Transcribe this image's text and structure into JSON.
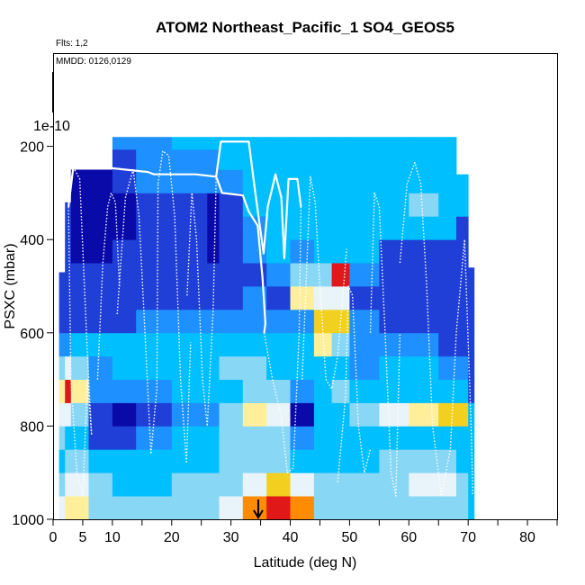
{
  "chart_data": {
    "type": "heatmap",
    "title": "ATOM2 Northeast_Pacific_1 SO4_GEOS5",
    "notes": [
      "Flts: 1,2",
      "MMDD: 0126,0129"
    ],
    "xlabel": "Latitude (deg N)",
    "ylabel": "PSXC (mbar)",
    "xlim": [
      0,
      85
    ],
    "ylim": [
      1000,
      0
    ],
    "x_ticks": [
      0,
      5,
      10,
      20,
      30,
      40,
      50,
      60,
      70,
      80
    ],
    "y_ticks": [
      200,
      400,
      600,
      800,
      1000
    ],
    "y_extra_label": "1e-10",
    "grid": false,
    "colorscale": [
      "#0a0aa8",
      "#1f3fd6",
      "#1e90ff",
      "#00bfff",
      "#87d7f5",
      "#e8f4fa",
      "#ffef9a",
      "#f2d020",
      "#ff8c00",
      "#e01818",
      "#b00000"
    ],
    "marker_latitude": 34.6,
    "pressure_levels": [
      975,
      925,
      875,
      825,
      775,
      725,
      675,
      625,
      575,
      525,
      475,
      425,
      375,
      325,
      275,
      225,
      188
    ],
    "lat_columns": [
      {
        "range": [
          1,
          2
        ],
        "top": 470,
        "levels": [
          5,
          4,
          3,
          4,
          5,
          6,
          4,
          2,
          1,
          1
        ]
      },
      {
        "range": [
          2,
          3
        ],
        "top": 320,
        "levels": [
          6,
          5,
          4,
          3,
          5,
          9,
          5,
          2,
          1,
          1,
          1,
          1,
          1
        ]
      },
      {
        "range": [
          3,
          6
        ],
        "top": 250,
        "levels": [
          6,
          5,
          4,
          3,
          4,
          6,
          4,
          3,
          1,
          1,
          1,
          0,
          0,
          0,
          0
        ]
      },
      {
        "range": [
          6,
          10
        ],
        "top": 250,
        "levels": [
          4,
          4,
          3,
          1,
          1,
          2,
          2,
          3,
          1,
          1,
          1,
          0,
          0,
          0,
          0
        ]
      },
      {
        "range": [
          10,
          14
        ],
        "top": 180,
        "levels": [
          4,
          3,
          3,
          1,
          0,
          2,
          3,
          3,
          1,
          1,
          1,
          1,
          0,
          0,
          1,
          1,
          2
        ]
      },
      {
        "range": [
          14,
          20
        ],
        "top": 180,
        "levels": [
          4,
          3,
          3,
          2,
          1,
          2,
          3,
          3,
          2,
          1,
          1,
          1,
          1,
          1,
          2,
          2,
          2
        ]
      },
      {
        "range": [
          20,
          26
        ],
        "top": 180,
        "levels": [
          4,
          4,
          3,
          3,
          2,
          3,
          3,
          3,
          2,
          1,
          1,
          1,
          1,
          1,
          2,
          2,
          3
        ]
      },
      {
        "range": [
          26,
          28
        ],
        "top": 180,
        "levels": [
          4,
          4,
          3,
          3,
          2,
          3,
          3,
          3,
          2,
          1,
          1,
          0,
          0,
          0,
          2,
          2,
          3
        ]
      },
      {
        "range": [
          28,
          32
        ],
        "top": 180,
        "levels": [
          5,
          4,
          4,
          4,
          4,
          3,
          4,
          3,
          2,
          1,
          1,
          1,
          1,
          1,
          2,
          3,
          3
        ]
      },
      {
        "range": [
          32,
          36
        ],
        "top": 180,
        "levels": [
          8,
          5,
          4,
          4,
          6,
          4,
          4,
          3,
          2,
          2,
          1,
          2,
          2,
          3,
          3,
          3,
          3
        ]
      },
      {
        "range": [
          36,
          40
        ],
        "top": 180,
        "levels": [
          9,
          7,
          4,
          4,
          5,
          4,
          3,
          3,
          2,
          1,
          2,
          3,
          3,
          3,
          3,
          3,
          3
        ]
      },
      {
        "range": [
          40,
          44
        ],
        "top": 180,
        "levels": [
          8,
          5,
          3,
          2,
          0,
          2,
          3,
          3,
          2,
          6,
          4,
          2,
          3,
          3,
          3,
          3,
          3
        ]
      },
      {
        "range": [
          44,
          47
        ],
        "top": 180,
        "levels": [
          4,
          4,
          3,
          3,
          3,
          3,
          3,
          6,
          7,
          5,
          4,
          3,
          3,
          3,
          3,
          3,
          3
        ]
      },
      {
        "range": [
          47,
          50
        ],
        "top": 180,
        "levels": [
          4,
          4,
          3,
          3,
          3,
          4,
          3,
          4,
          7,
          5,
          9,
          3,
          3,
          3,
          3,
          3,
          3
        ]
      },
      {
        "range": [
          50,
          55
        ],
        "top": 180,
        "levels": [
          4,
          4,
          3,
          3,
          4,
          3,
          2,
          2,
          2,
          1,
          2,
          3,
          3,
          3,
          3,
          3,
          3
        ]
      },
      {
        "range": [
          55,
          60
        ],
        "top": 180,
        "levels": [
          4,
          4,
          4,
          3,
          5,
          3,
          3,
          2,
          1,
          1,
          1,
          1,
          3,
          3,
          3,
          3,
          3
        ]
      },
      {
        "range": [
          60,
          65
        ],
        "top": 180,
        "levels": [
          4,
          5,
          4,
          3,
          6,
          3,
          3,
          2,
          1,
          1,
          1,
          1,
          3,
          4,
          3,
          3,
          3
        ]
      },
      {
        "range": [
          65,
          68
        ],
        "top": 180,
        "levels": [
          4,
          5,
          4,
          3,
          7,
          3,
          2,
          1,
          1,
          1,
          1,
          1,
          3,
          3,
          3,
          3,
          3
        ]
      },
      {
        "range": [
          68,
          70
        ],
        "top": 260,
        "levels": [
          4,
          4,
          3,
          3,
          7,
          3,
          2,
          1,
          1,
          1,
          1,
          1,
          1,
          3,
          3
        ]
      },
      {
        "range": [
          70,
          71
        ],
        "top": 460,
        "levels": [
          3,
          3,
          3,
          3,
          3,
          1,
          1,
          1,
          1,
          1
        ]
      }
    ],
    "flight_tracks": [
      {
        "style": "solid",
        "points": [
          [
            2.6,
            330
          ],
          [
            3.4,
            245
          ],
          [
            8.5,
            245
          ],
          [
            16,
            255
          ],
          [
            17,
            260
          ],
          [
            24,
            260
          ],
          [
            27.5,
            265
          ],
          [
            28.5,
            300
          ],
          [
            32,
            305
          ],
          [
            33,
            340
          ],
          [
            34.5,
            370
          ],
          [
            35.3,
            480
          ],
          [
            35.8,
            580
          ],
          [
            35.6,
            600
          ]
        ]
      },
      {
        "style": "solid",
        "points": [
          [
            27.5,
            265
          ],
          [
            28.3,
            190
          ],
          [
            33,
            190
          ],
          [
            34,
            290
          ],
          [
            35.5,
            430
          ],
          [
            36.2,
            330
          ],
          [
            37.5,
            260
          ],
          [
            38.5,
            310
          ],
          [
            39,
            440
          ],
          [
            39.7,
            270
          ],
          [
            41.2,
            270
          ],
          [
            41.8,
            330
          ]
        ]
      },
      {
        "style": "dotted",
        "points": [
          [
            2.6,
            330
          ],
          [
            3,
            700
          ],
          [
            4,
            900
          ],
          [
            5,
            950
          ],
          [
            5.8,
            700
          ],
          [
            6.5,
            820
          ]
        ]
      },
      {
        "style": "dotted",
        "points": [
          [
            3.4,
            245
          ],
          [
            4.5,
            270
          ],
          [
            5.8,
            650
          ],
          [
            6.5,
            820
          ]
        ]
      },
      {
        "style": "dotted",
        "points": [
          [
            7.5,
            700
          ],
          [
            8.4,
            450
          ],
          [
            9.2,
            330
          ],
          [
            9.8,
            300
          ],
          [
            10.5,
            320
          ],
          [
            11.2,
            500
          ]
        ]
      },
      {
        "style": "dotted",
        "points": [
          [
            10.8,
            560
          ],
          [
            12.2,
            310
          ],
          [
            13.5,
            250
          ],
          [
            14.5,
            350
          ],
          [
            15.5,
            600
          ],
          [
            16.5,
            860
          ],
          [
            17.5,
            720
          ],
          [
            17.7,
            280
          ]
        ]
      },
      {
        "style": "dotted",
        "points": [
          [
            17.7,
            280
          ],
          [
            18.5,
            210
          ],
          [
            19.5,
            220
          ],
          [
            20.5,
            350
          ],
          [
            21.5,
            700
          ],
          [
            22.5,
            880
          ],
          [
            23.2,
            620
          ]
        ]
      },
      {
        "style": "dotted",
        "points": [
          [
            22.6,
            520
          ],
          [
            23.4,
            300
          ],
          [
            24.2,
            400
          ],
          [
            25.2,
            700
          ],
          [
            26,
            800
          ],
          [
            27,
            550
          ],
          [
            27.5,
            265
          ]
        ]
      },
      {
        "style": "dotted",
        "points": [
          [
            35.6,
            600
          ],
          [
            37,
            700
          ],
          [
            38.5,
            780
          ],
          [
            39.5,
            900
          ],
          [
            40.5,
            890
          ],
          [
            41.5,
            600
          ],
          [
            41.8,
            330
          ]
        ]
      },
      {
        "style": "dotted",
        "points": [
          [
            42,
            700
          ],
          [
            43.4,
            265
          ],
          [
            44.2,
            320
          ],
          [
            45,
            500
          ],
          [
            46,
            700
          ],
          [
            47,
            720
          ],
          [
            48,
            650
          ],
          [
            49,
            500
          ],
          [
            49.5,
            420
          ]
        ]
      },
      {
        "style": "dotted",
        "points": [
          [
            48,
            920
          ],
          [
            49.3,
            740
          ],
          [
            49.8,
            500
          ],
          [
            50.5,
            520
          ],
          [
            51.5,
            800
          ],
          [
            52.5,
            900
          ],
          [
            53.5,
            850
          ]
        ]
      },
      {
        "style": "dotted",
        "points": [
          [
            53.5,
            600
          ],
          [
            54.2,
            300
          ],
          [
            55,
            330
          ],
          [
            56,
            600
          ],
          [
            57,
            900
          ],
          [
            57.8,
            950
          ],
          [
            58.5,
            600
          ]
        ]
      },
      {
        "style": "dotted",
        "points": [
          [
            58.5,
            450
          ],
          [
            59.7,
            280
          ],
          [
            61,
            235
          ],
          [
            62,
            280
          ],
          [
            63,
            500
          ],
          [
            64,
            800
          ],
          [
            65.5,
            950
          ],
          [
            67,
            850
          ],
          [
            68,
            600
          ],
          [
            69.4,
            400
          ],
          [
            70.5,
            800
          ],
          [
            70.8,
            950
          ]
        ]
      }
    ]
  }
}
